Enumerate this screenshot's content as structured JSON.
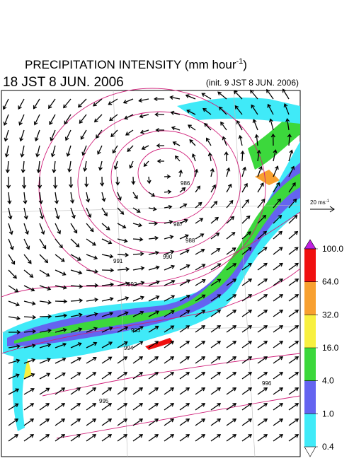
{
  "header": {
    "title": "PRECIPITATION INTENSITY (mm hour",
    "title_exponent": "-1",
    "title_close": ")",
    "valid_time": "18 JST 8 JUN. 2006",
    "init_time": "(init. 9 JST 8 JUN. 2006)"
  },
  "wind_legend": {
    "label": "20 ms",
    "exponent": "-1"
  },
  "colorbar": {
    "levels": [
      0.4,
      {
        "value": 1,
        "label": "1.0"
      },
      {
        "value": 4,
        "label": "4.0"
      },
      {
        "value": 16,
        "label": "16.0"
      },
      {
        "value": 32,
        "label": "32.0"
      },
      {
        "value": 64,
        "label": "64.0"
      },
      {
        "value": 100,
        "label": "100.0"
      }
    ],
    "colors": [
      "#ffffff",
      "#40eaf8",
      "#6464f0",
      "#3cd83c",
      "#f8f040",
      "#f8a030",
      "#f01010",
      "#c020e0"
    ]
  },
  "isobar_labels": [
    "986",
    "987",
    "988",
    "990",
    "991",
    "992",
    "993",
    "994",
    "995",
    "996"
  ]
}
